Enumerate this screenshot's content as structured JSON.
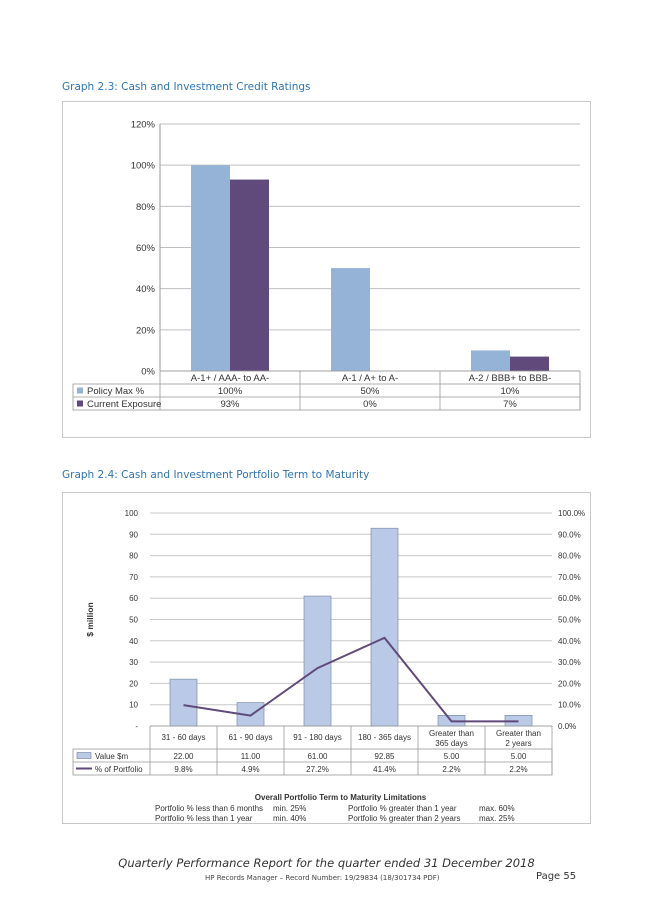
{
  "chart_data": [
    {
      "type": "bar",
      "title": "Graph 2.3: Cash and Investment Credit Ratings",
      "categories": [
        "A-1+ / AAA- to AA-",
        "A-1 / A+ to A-",
        "A-2 / BBB+ to BBB-"
      ],
      "series": [
        {
          "name": "Policy Max %",
          "values": [
            100,
            50,
            10
          ],
          "labels": [
            "100%",
            "50%",
            "10%"
          ],
          "color": "#95b3d7"
        },
        {
          "name": "Current Exposure",
          "values": [
            93,
            0,
            7
          ],
          "labels": [
            "93%",
            "0%",
            "7%"
          ],
          "color": "#604a7b"
        }
      ],
      "ylim": [
        0,
        120
      ],
      "yticks": [
        "0%",
        "20%",
        "40%",
        "60%",
        "80%",
        "100%",
        "120%"
      ],
      "grid": true,
      "legend": "data table"
    },
    {
      "type": "bar",
      "title": "Graph 2.4: Cash and Investment Portfolio Term to Maturity",
      "categories": [
        "31 - 60 days",
        "61 - 90 days",
        "91 - 180 days",
        "180 - 365 days",
        "Greater than 365 days",
        "Greater than 2 years"
      ],
      "ylabel": "$ million",
      "ylim": [
        0,
        100
      ],
      "yticks": [
        "-",
        "10",
        "20",
        "30",
        "40",
        "50",
        "60",
        "70",
        "80",
        "90",
        "100"
      ],
      "y2lim": [
        0,
        100
      ],
      "y2ticks": [
        "0.0%",
        "10.0%",
        "20.0%",
        "30.0%",
        "40.0%",
        "50.0%",
        "60.0%",
        "70.0%",
        "80.0%",
        "90.0%",
        "100.0%"
      ],
      "series": [
        {
          "name": "Value $m",
          "kind": "bar",
          "axis": "left",
          "values": [
            22.0,
            11.0,
            61.0,
            92.85,
            5.0,
            5.0
          ],
          "labels": [
            "22.00",
            "11.00",
            "61.00",
            "92.85",
            "5.00",
            "5.00"
          ],
          "color": "#b9c9e6"
        },
        {
          "name": "% of Portfolio",
          "kind": "line",
          "axis": "right",
          "values": [
            9.8,
            4.9,
            27.2,
            41.4,
            2.2,
            2.2
          ],
          "labels": [
            "9.8%",
            "4.9%",
            "27.2%",
            "41.4%",
            "2.2%",
            "2.2%"
          ],
          "color": "#604a7b"
        }
      ],
      "grid": true,
      "legend": "data table",
      "limitations": {
        "title": "Overall Portfolio Term to Maturity Limitations",
        "rows": [
          [
            "Portfolio % less than 6 months",
            "min. 25%",
            "Portfolio % greater than 1 year",
            "max. 60%"
          ],
          [
            "Portfolio % less than 1 year",
            "min. 40%",
            "Portfolio % greater than 2 years",
            "max. 25%"
          ]
        ]
      }
    }
  ],
  "footer": {
    "report": "Quarterly Performance Report for the quarter ended 31 December 2018",
    "record": "HP Records Manager – Record Number: 19/29834 (18/301734 PDF)",
    "page": "Page 55"
  }
}
